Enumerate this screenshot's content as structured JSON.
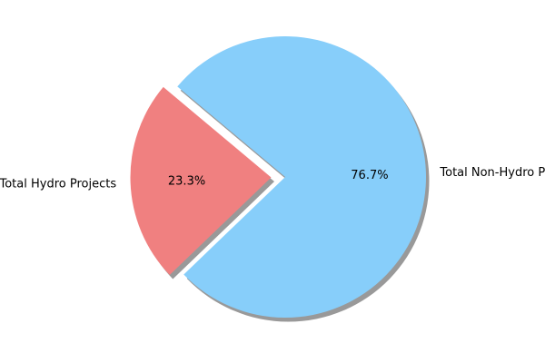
{
  "chart_data": {
    "type": "pie",
    "title": "",
    "slices": [
      {
        "label": "Total Hydro Projects",
        "value": 23.3,
        "pct_label": "23.3%",
        "color": "#f08080",
        "exploded": true
      },
      {
        "label": "Total Non-Hydro Projects",
        "value": 76.7,
        "pct_label": "76.7%",
        "color": "#87cefa",
        "exploded": false
      }
    ],
    "shadow": true,
    "start_angle_deg": 140,
    "direction": "counterclockwise"
  }
}
